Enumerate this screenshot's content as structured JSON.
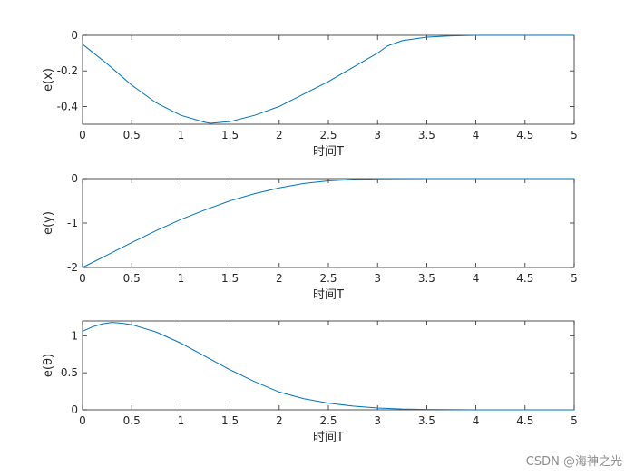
{
  "watermark": "CSDN @海神之光",
  "series_color": "#0072bd",
  "chart_data": [
    {
      "type": "line",
      "xlabel": "时间T",
      "ylabel": "e(x)",
      "xlim": [
        0,
        5
      ],
      "ylim": [
        -0.5,
        0
      ],
      "xticks": [
        0,
        0.5,
        1,
        1.5,
        2,
        2.5,
        3,
        3.5,
        4,
        4.5,
        5
      ],
      "xtick_labels": [
        "0",
        "0.5",
        "1",
        "1.5",
        "2",
        "2.5",
        "3",
        "3.5",
        "4",
        "4.5",
        "5"
      ],
      "yticks": [
        -0.4,
        -0.2,
        0
      ],
      "ytick_labels": [
        "-0.4",
        "-0.2",
        "0"
      ],
      "grid": false,
      "series": [
        {
          "x": [
            0,
            0.25,
            0.5,
            0.75,
            1.0,
            1.25,
            1.3,
            1.5,
            1.75,
            2.0,
            2.25,
            2.5,
            2.75,
            3.0,
            3.1,
            3.25,
            3.5,
            3.75,
            4.0,
            4.25,
            4.5,
            5.0
          ],
          "y": [
            -0.05,
            -0.16,
            -0.28,
            -0.38,
            -0.45,
            -0.49,
            -0.495,
            -0.485,
            -0.45,
            -0.4,
            -0.33,
            -0.26,
            -0.18,
            -0.1,
            -0.06,
            -0.03,
            -0.01,
            -0.003,
            0,
            0,
            0,
            0
          ]
        }
      ]
    },
    {
      "type": "line",
      "xlabel": "时间T",
      "ylabel": "e(y)",
      "xlim": [
        0,
        5
      ],
      "ylim": [
        -2,
        0
      ],
      "xticks": [
        0,
        0.5,
        1,
        1.5,
        2,
        2.5,
        3,
        3.5,
        4,
        4.5,
        5
      ],
      "xtick_labels": [
        "0",
        "0.5",
        "1",
        "1.5",
        "2",
        "2.5",
        "3",
        "3.5",
        "4",
        "4.5",
        "5"
      ],
      "yticks": [
        -2,
        -1,
        0
      ],
      "ytick_labels": [
        "-2",
        "-1",
        "0"
      ],
      "grid": false,
      "series": [
        {
          "x": [
            0,
            0.25,
            0.5,
            0.75,
            1.0,
            1.25,
            1.5,
            1.75,
            2.0,
            2.25,
            2.5,
            2.75,
            3.0,
            3.5,
            4.0,
            5.0
          ],
          "y": [
            -2.0,
            -1.72,
            -1.44,
            -1.17,
            -0.92,
            -0.7,
            -0.5,
            -0.34,
            -0.21,
            -0.11,
            -0.05,
            -0.02,
            -0.005,
            0,
            0,
            0
          ]
        }
      ]
    },
    {
      "type": "line",
      "xlabel": "时间T",
      "ylabel": "e(θ)",
      "xlim": [
        0,
        5
      ],
      "ylim": [
        0,
        1.2
      ],
      "xticks": [
        0,
        0.5,
        1,
        1.5,
        2,
        2.5,
        3,
        3.5,
        4,
        4.5,
        5
      ],
      "xtick_labels": [
        "0",
        "0.5",
        "1",
        "1.5",
        "2",
        "2.5",
        "3",
        "3.5",
        "4",
        "4.5",
        "5"
      ],
      "yticks": [
        0,
        0.5,
        1
      ],
      "ytick_labels": [
        "0",
        "0.5",
        "1"
      ],
      "grid": false,
      "series": [
        {
          "x": [
            0,
            0.1,
            0.2,
            0.3,
            0.4,
            0.5,
            0.75,
            1.0,
            1.25,
            1.5,
            1.75,
            2.0,
            2.25,
            2.5,
            2.75,
            3.0,
            3.25,
            3.5,
            4.0,
            4.5,
            5.0
          ],
          "y": [
            1.06,
            1.12,
            1.16,
            1.18,
            1.17,
            1.15,
            1.05,
            0.9,
            0.72,
            0.54,
            0.38,
            0.24,
            0.15,
            0.09,
            0.05,
            0.025,
            0.01,
            0.005,
            0,
            0,
            0
          ]
        }
      ]
    }
  ]
}
